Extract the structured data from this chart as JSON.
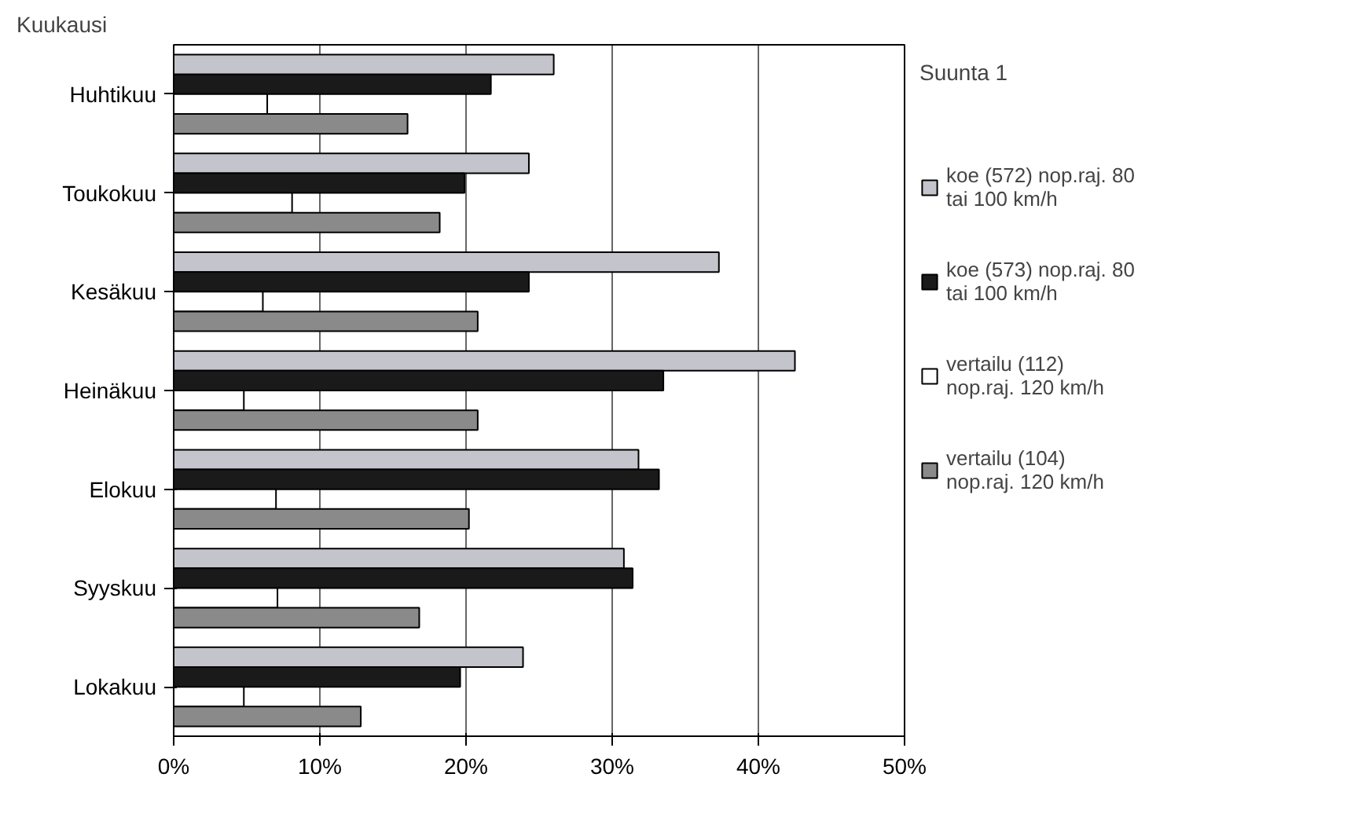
{
  "chart_data": {
    "type": "bar",
    "orientation": "horizontal",
    "ylabel": "Kuukausi",
    "legend_title": "Suunta 1",
    "categories": [
      "Huhtikuu",
      "Toukokuu",
      "Kesäkuu",
      "Heinäkuu",
      "Elokuu",
      "Syyskuu",
      "Lokakuu"
    ],
    "series": [
      {
        "name": "koe (572) nop.raj. 80 tai 100 km/h",
        "color": "#c4c4cc",
        "values": [
          26.0,
          24.3,
          37.3,
          42.5,
          31.8,
          30.8,
          23.9
        ]
      },
      {
        "name": "koe (573) nop.raj. 80 tai 100 km/h",
        "color": "#1a1a1a",
        "values": [
          21.7,
          19.9,
          24.3,
          33.5,
          33.2,
          31.4,
          19.6
        ]
      },
      {
        "name": "vertailu (112) nop.raj. 120 km/h",
        "color": "#ffffff",
        "values": [
          6.4,
          8.1,
          6.1,
          4.8,
          7.0,
          7.1,
          4.8
        ]
      },
      {
        "name": "vertailu (104) nop.raj. 120 km/h",
        "color": "#8a8a8a",
        "values": [
          16.0,
          18.2,
          20.8,
          20.8,
          20.2,
          16.8,
          12.8
        ]
      }
    ],
    "xlim": [
      0,
      50
    ],
    "xticks": [
      {
        "value": 0,
        "label": "0%"
      },
      {
        "value": 10,
        "label": "10%"
      },
      {
        "value": 20,
        "label": "20%"
      },
      {
        "value": 30,
        "label": "30%"
      },
      {
        "value": 40,
        "label": "40%"
      },
      {
        "value": 50,
        "label": "50%"
      }
    ],
    "grid": "x",
    "legend": "right"
  }
}
